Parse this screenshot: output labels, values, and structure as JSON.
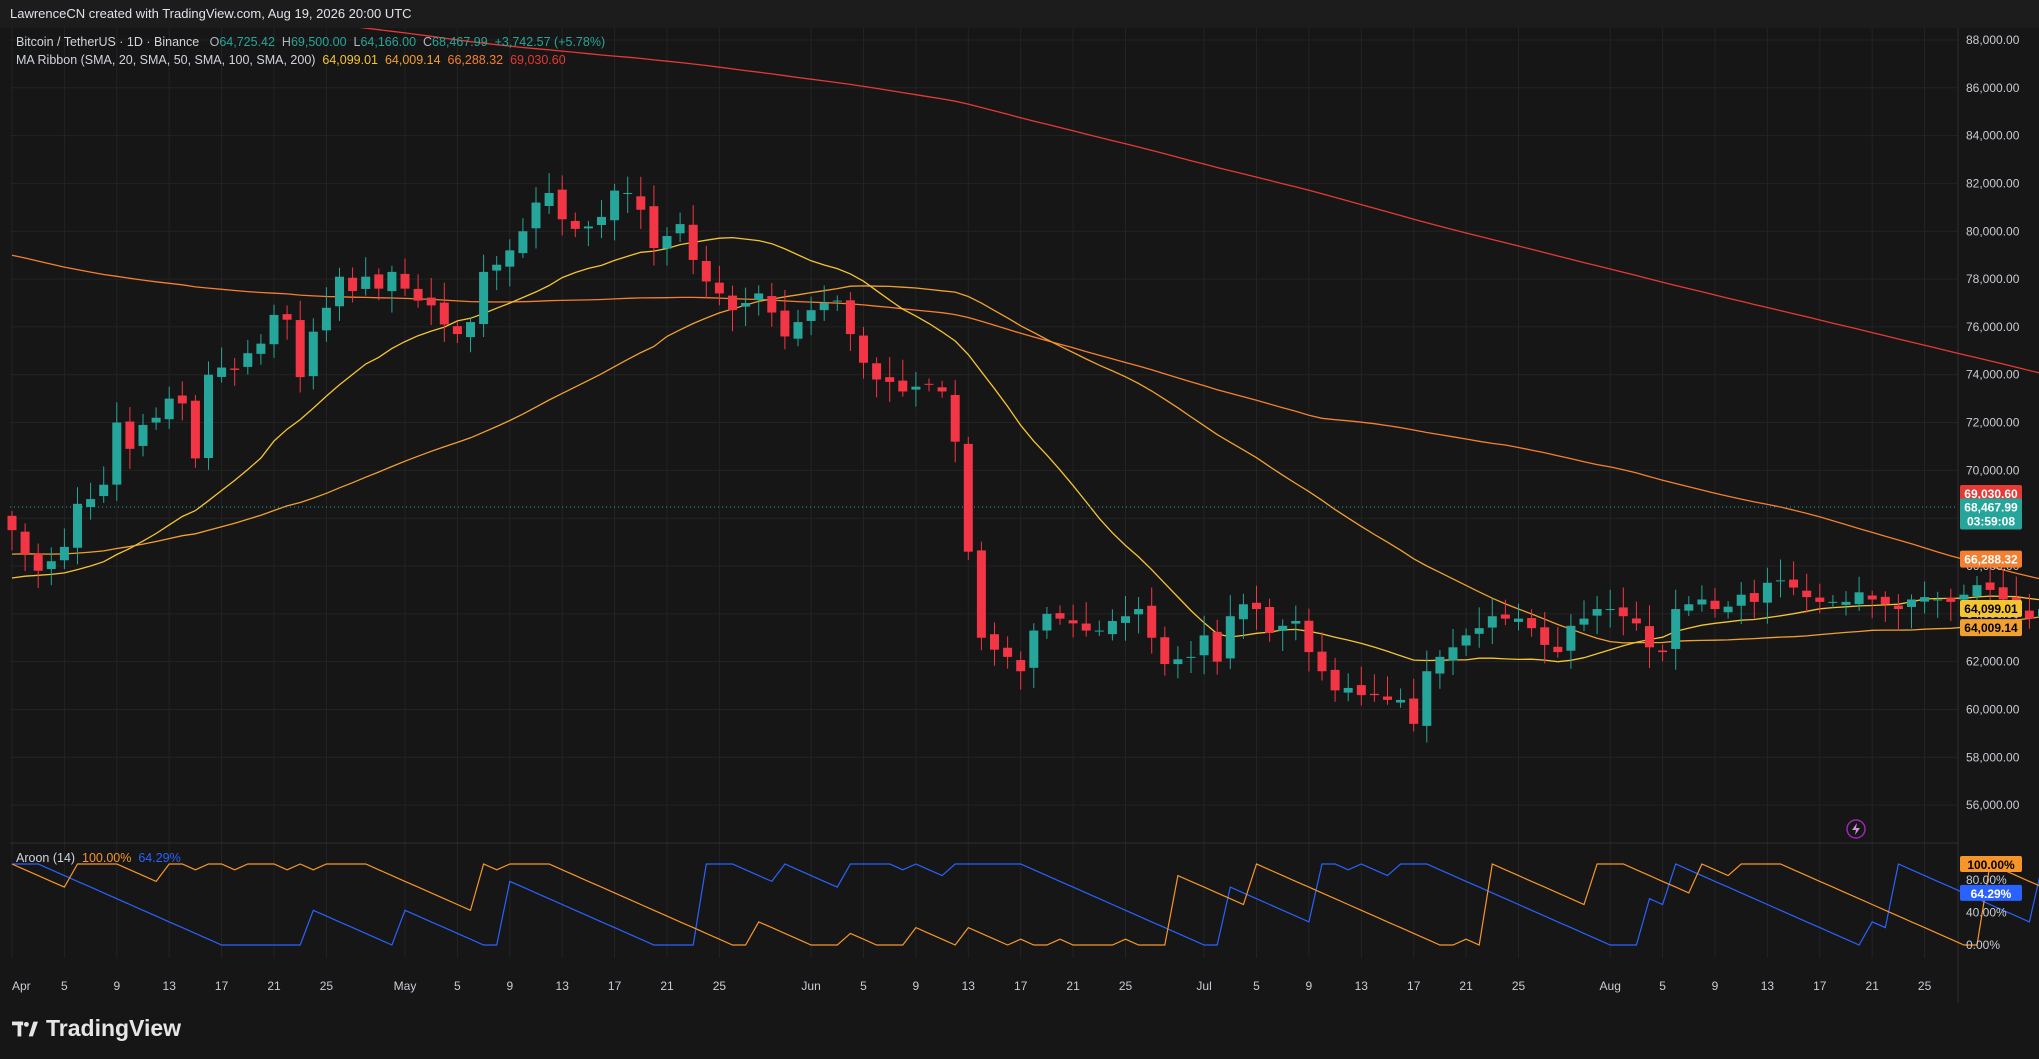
{
  "header": {
    "text": "LawrenceCN created with TradingView.com, Aug 19, 2026 20:00 UTC"
  },
  "legend": {
    "symbol": "Bitcoin / TetherUS · 1D · Binance",
    "open_label": "O",
    "open": "64,725.42",
    "high_label": "H",
    "high": "69,500.00",
    "low_label": "L",
    "low": "64,166.00",
    "close_label": "C",
    "close": "68,467.99",
    "change": "+3,742.57 (+5.78%)",
    "ma_title": "MA Ribbon (SMA, 20, SMA, 50, SMA, 100, SMA, 200)",
    "ma20": "64,099.01",
    "ma50": "64,009.14",
    "ma100": "66,288.32",
    "ma200": "69,030.60"
  },
  "aroon_legend": {
    "title": "Aroon (14)",
    "up": "100.00%",
    "down": "64.29%"
  },
  "price_tags": {
    "ma200": "69,030.60",
    "last": "68,467.99",
    "countdown": "03:59:08",
    "ma100": "66,288.32",
    "ma20": "64,099.01",
    "ma50": "64,009.14",
    "aroon_up": "100.00%",
    "aroon_down": "64.29%"
  },
  "colors": {
    "up": "#26a69a",
    "down": "#f23645",
    "ma20": "#f5c431",
    "ma50": "#f0a030",
    "ma100": "#f57f30",
    "ma200": "#e53935",
    "aroon_up": "#f7952a",
    "aroon_down": "#2962ff"
  },
  "branding": {
    "logo_text": "TradingView"
  },
  "chart_data": {
    "type": "candlestick",
    "price_axis": {
      "ylim": [
        54500,
        88500
      ],
      "ticks": [
        "56,000.00",
        "58,000.00",
        "60,000.00",
        "62,000.00",
        "64,000.00",
        "66,000.00",
        "68,000.00",
        "70,000.00",
        "72,000.00",
        "74,000.00",
        "76,000.00",
        "78,000.00",
        "80,000.00",
        "82,000.00",
        "84,000.00",
        "86,000.00",
        "88,000.00"
      ],
      "tick_values": [
        56000,
        58000,
        60000,
        62000,
        64000,
        66000,
        68000,
        70000,
        72000,
        74000,
        76000,
        78000,
        80000,
        82000,
        84000,
        86000,
        88000
      ]
    },
    "aroon_axis": {
      "ylim": [
        0,
        100
      ],
      "ticks": [
        "0.00%",
        "40.00%",
        "80.00%"
      ],
      "tick_values": [
        0,
        40,
        80
      ]
    },
    "x_axis": {
      "labels": [
        "Apr",
        "5",
        "9",
        "13",
        "17",
        "21",
        "25",
        "May",
        "5",
        "9",
        "13",
        "17",
        "21",
        "25",
        "Jun",
        "5",
        "9",
        "13",
        "17",
        "21",
        "25",
        "Jul",
        "5",
        "9",
        "13",
        "17",
        "21",
        "25",
        "Aug",
        "5",
        "9",
        "13",
        "17",
        "21",
        "25"
      ],
      "label_days": [
        1,
        5,
        9,
        13,
        17,
        21,
        25,
        31,
        35,
        39,
        43,
        47,
        51,
        55,
        62,
        66,
        70,
        74,
        78,
        82,
        86,
        92,
        96,
        100,
        104,
        108,
        112,
        116,
        123,
        127,
        131,
        135,
        139,
        143,
        147
      ]
    },
    "ohlc_closes": [
      67500,
      66500,
      65800,
      66200,
      66800,
      68600,
      68800,
      69400,
      72000,
      70900,
      71900,
      72200,
      73000,
      72800,
      70500,
      74000,
      74300,
      74200,
      74900,
      75300,
      76500,
      76300,
      73900,
      75800,
      76800,
      78100,
      77500,
      78100,
      77600,
      78300,
      77600,
      77100,
      76900,
      76100,
      75700,
      76200,
      78300,
      78600,
      79200,
      80000,
      81200,
      81600,
      80500,
      80100,
      80200,
      80600,
      81700,
      81600,
      80900,
      79300,
      79800,
      80300,
      78800,
      77900,
      77400,
      76700,
      77000,
      77400,
      76600,
      75600,
      76200,
      76700,
      77000,
      77100,
      75700,
      74500,
      73800,
      73700,
      73300,
      73500,
      73600,
      73300,
      71200,
      66600,
      63000,
      62500,
      62200,
      61600,
      63300,
      64000,
      63800,
      63600,
      63300,
      63300,
      63700,
      63900,
      64200,
      63000,
      61900,
      62100,
      62200,
      63100,
      62000,
      63900,
      64400,
      64200,
      63200,
      63500,
      63700,
      62400,
      61600,
      60800,
      60900,
      60600,
      60600,
      60400,
      60400,
      59400,
      61600,
      62200,
      62600,
      63100,
      63400,
      63900,
      63800,
      63800,
      63400,
      62700,
      62400,
      63500,
      63800,
      64200,
      64200,
      63900,
      63600,
      62600,
      62400,
      64200,
      64400,
      64600,
      64200,
      64300,
      64800,
      64500,
      65300,
      65400,
      65100,
      64700,
      64500,
      64500,
      64500,
      64900,
      64600,
      64400,
      64200,
      64600,
      64700,
      64600,
      64500,
      64800,
      65200,
      65000,
      64600,
      64200,
      63800,
      64200,
      64600,
      64800,
      63800,
      63900,
      64300,
      64500,
      64100,
      63800,
      63400,
      63200,
      63300,
      63500,
      64000,
      64600,
      68468
    ],
    "note_series": "ohlc candles are generated deterministically from closes in the script; last candle O 64,725.42 H 69,500.00 L 64,166.00 C 68,467.99"
  }
}
